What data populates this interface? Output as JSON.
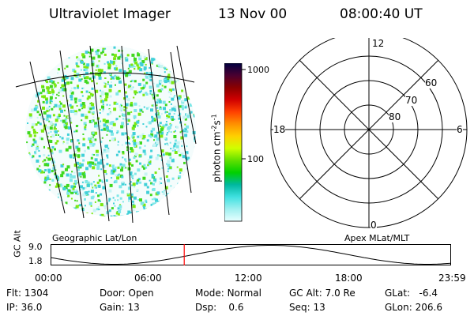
{
  "header": {
    "instrument": "Ultraviolet Imager",
    "date": "13 Nov 00",
    "time": "08:00:40 UT"
  },
  "colorbar": {
    "ticks": [
      "1000",
      "100"
    ],
    "unit_label": "photon cm",
    "unit_exp1": "-2",
    "unit_mid": "s",
    "unit_exp2": "-1",
    "stops": [
      "#000040",
      "#4a0030",
      "#8a0000",
      "#d00000",
      "#ff4000",
      "#ff9000",
      "#ffd000",
      "#d0ff00",
      "#60e000",
      "#00d000",
      "#00b8a0",
      "#40e0e0",
      "#a0f0f0",
      "#e8ffff"
    ]
  },
  "image_caption": "Geographic Lat/Lon",
  "polar_plot": {
    "caption": "Apex MLat/MLT",
    "mlt_labels": {
      "top": "12",
      "left": "18",
      "right": "6",
      "bottom": "0"
    },
    "lat_labels": [
      "60",
      "70",
      "80"
    ]
  },
  "timeline": {
    "ylabel": "GC Alt",
    "y_ticks": [
      "9.0",
      "1.8"
    ],
    "x_ticks": [
      "00:00",
      "06:00",
      "12:00",
      "18:00",
      "23:59"
    ],
    "marker_time": "08:00",
    "marker_color": "#ff0000"
  },
  "footer": {
    "row1": [
      {
        "label": "Flt:",
        "value": "1304"
      },
      {
        "label": "Door:",
        "value": "Open"
      },
      {
        "label": "Mode:",
        "value": "Normal"
      },
      {
        "label": "GC Alt:",
        "value": "7.0 Re"
      },
      {
        "label": "GLat:",
        "value": "-6.4"
      }
    ],
    "row2": [
      {
        "label": "IP:",
        "value": "36.0"
      },
      {
        "label": "Gain:",
        "value": "13"
      },
      {
        "label": "Dsp:",
        "value": "0.6"
      },
      {
        "label": "Seq:",
        "value": "13"
      },
      {
        "label": "GLon:",
        "value": "206.6"
      }
    ]
  }
}
